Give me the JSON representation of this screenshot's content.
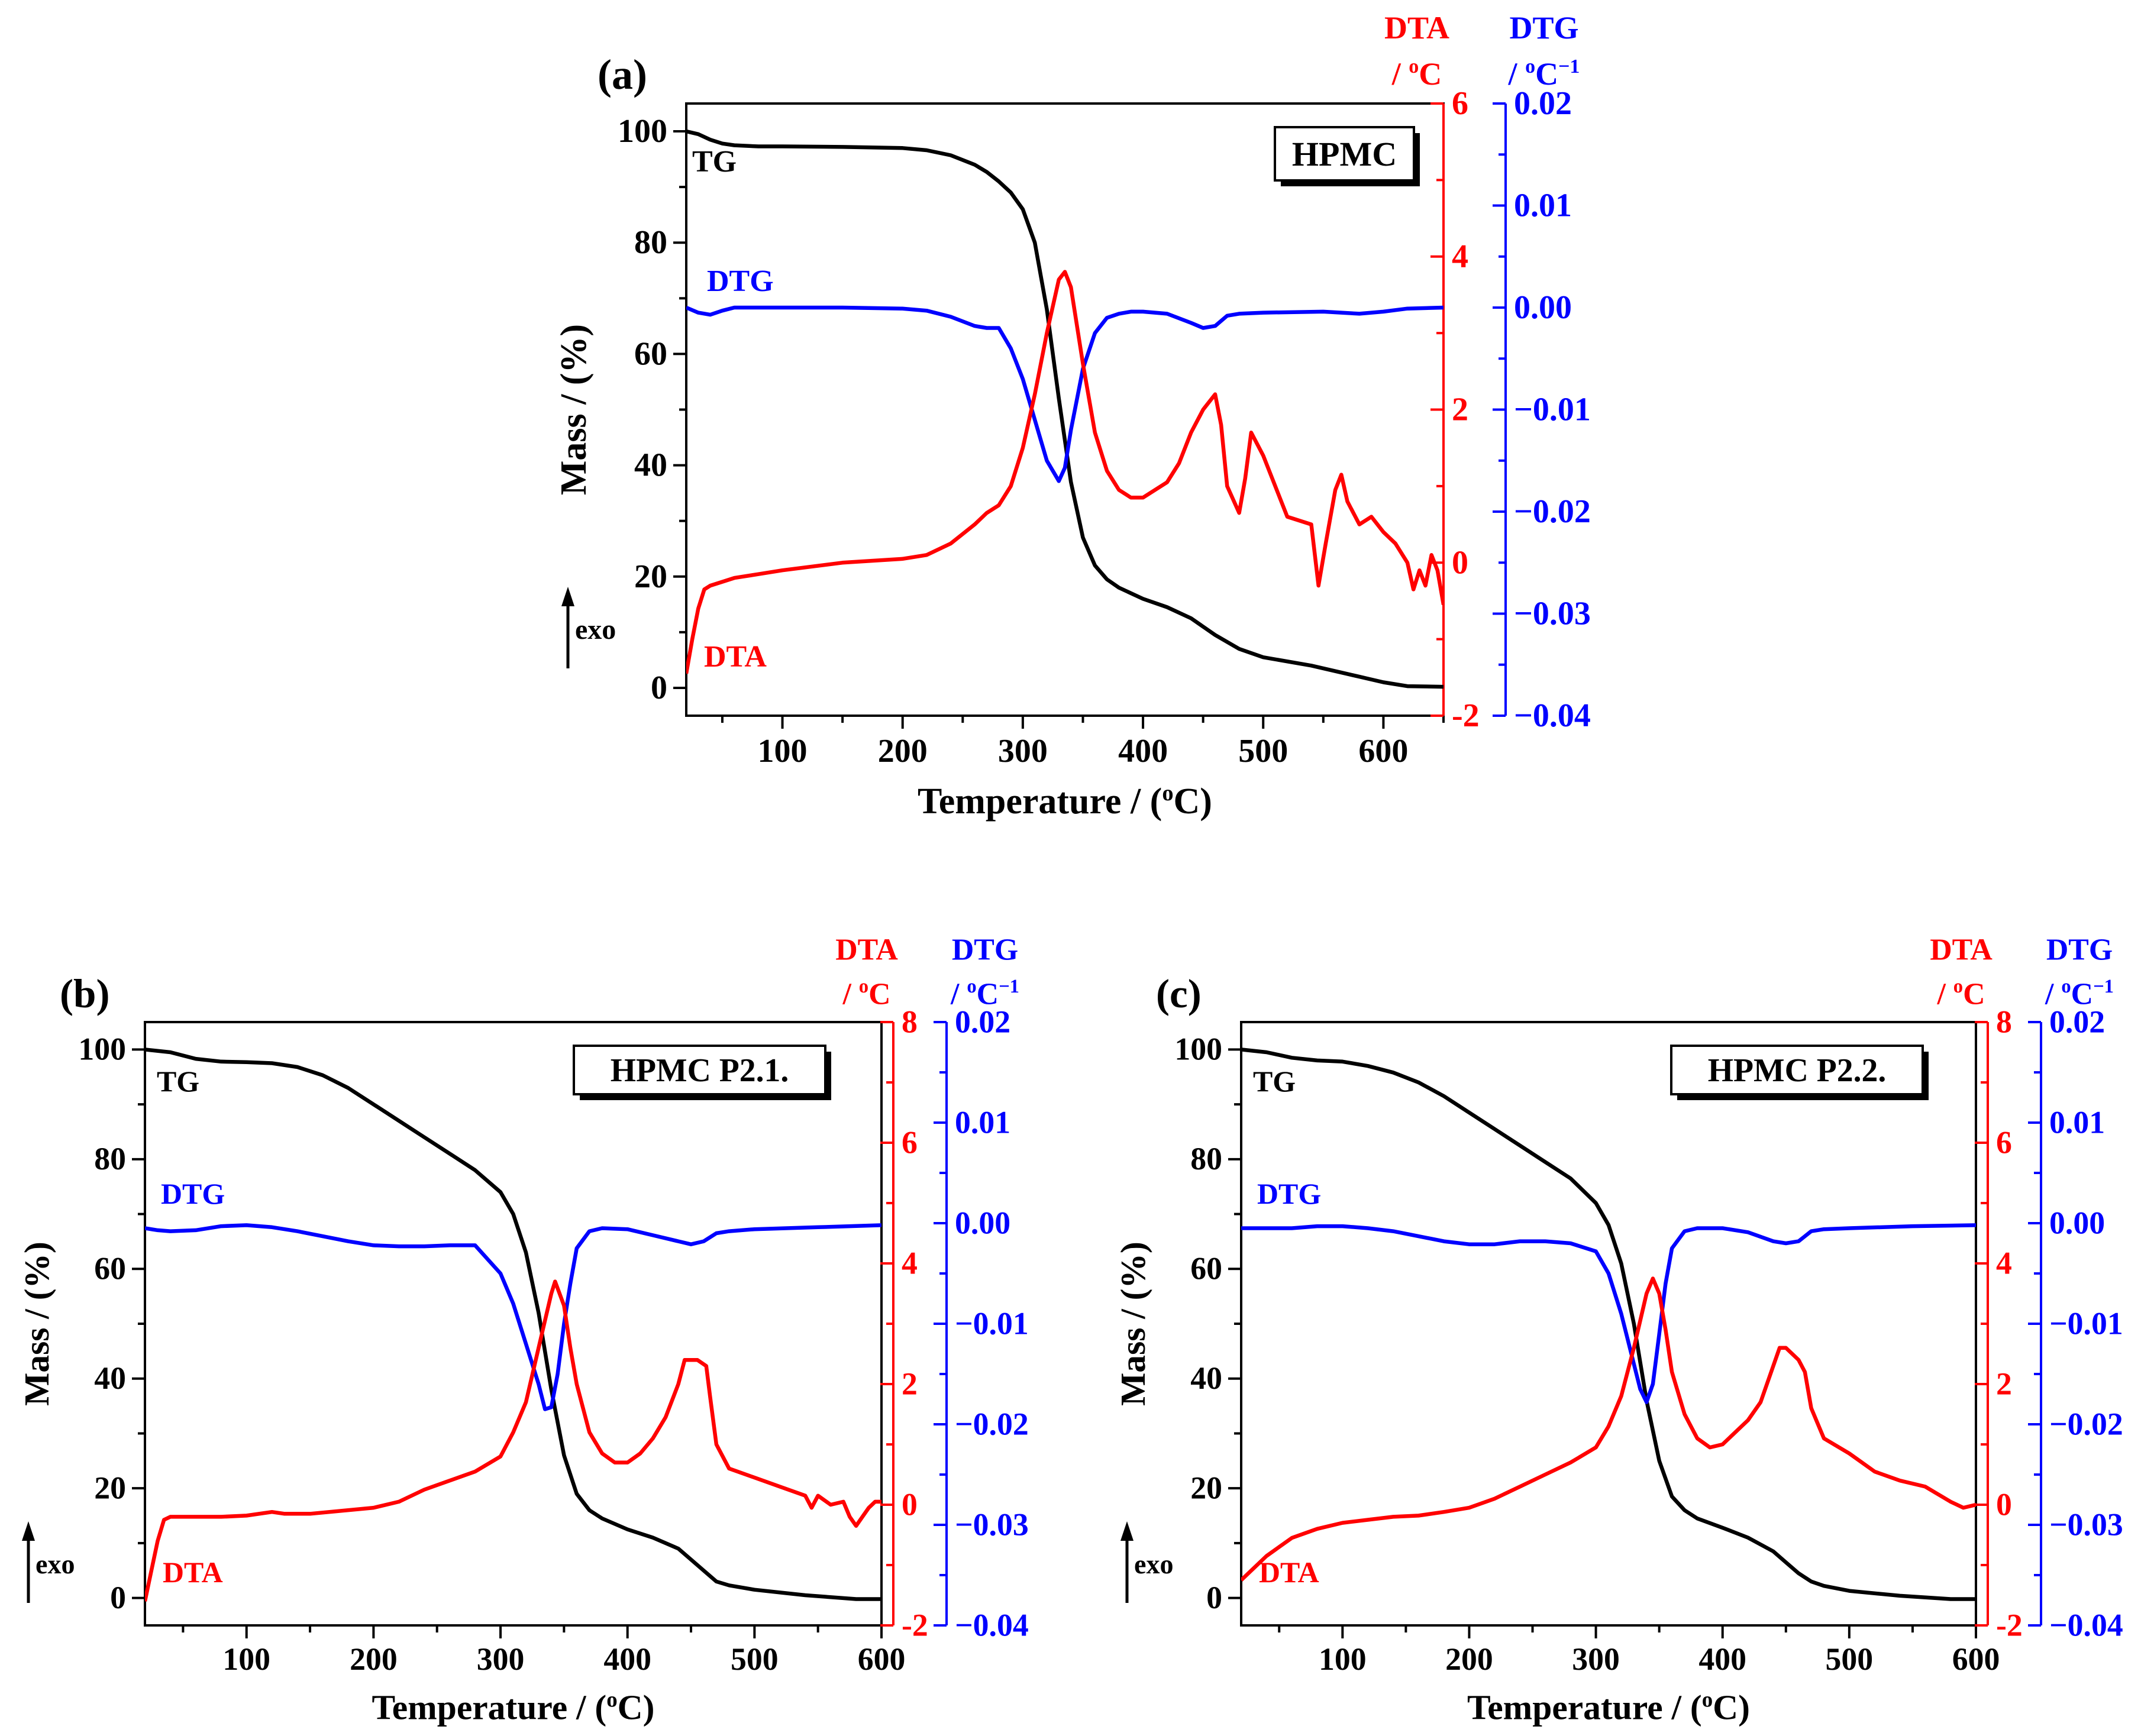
{
  "colors": {
    "tg": "#000000",
    "dtg": "#0000ff",
    "dta": "#ff0000",
    "axis": "#000000"
  },
  "chart_data": [
    {
      "panel": "(a)",
      "type": "line",
      "title": "HPMC",
      "xlabel": "Temperature / (",
      "xlabel_sup": "o",
      "xlabel_end": "C)",
      "xlim": [
        20,
        650
      ],
      "xticks": [
        100,
        200,
        300,
        400,
        500,
        600
      ],
      "left_axis": {
        "label": "Mass / (%)",
        "lim": [
          -5,
          105
        ],
        "ticks": [
          0,
          20,
          40,
          60,
          80,
          100
        ]
      },
      "dta_axis": {
        "label_line1": "DTA",
        "label_line2": "/ ",
        "label_sup": "o",
        "label_end": "C",
        "lim": [
          -2,
          6
        ],
        "ticks": [
          -2,
          0,
          2,
          4,
          6
        ]
      },
      "dtg_axis": {
        "label_line1": "DTG",
        "label_line2": "/ ",
        "label_sup": "o",
        "label_end": "C",
        "label_sup2": "−1",
        "lim": [
          -0.04,
          0.02
        ],
        "ticks": [
          "−0.04",
          "−0.03",
          "−0.02",
          "−0.01",
          "0.00",
          "0.01",
          "0.02"
        ],
        "tick_values": [
          -0.04,
          -0.03,
          -0.02,
          -0.01,
          0.0,
          0.01,
          0.02
        ]
      },
      "exo_label": "exo",
      "curve_labels": {
        "tg": "TG",
        "dtg": "DTG",
        "dta": "DTA"
      },
      "series": [
        {
          "name": "TG",
          "axis": "left",
          "x": [
            20,
            30,
            40,
            50,
            60,
            80,
            100,
            150,
            200,
            220,
            240,
            260,
            270,
            280,
            290,
            300,
            310,
            320,
            330,
            340,
            350,
            360,
            370,
            380,
            400,
            420,
            440,
            460,
            480,
            500,
            540,
            560,
            580,
            600,
            620,
            650
          ],
          "y": [
            100,
            99.5,
            98.5,
            97.8,
            97.5,
            97.3,
            97.3,
            97.2,
            97.0,
            96.6,
            95.7,
            94.0,
            92.7,
            91.0,
            89.0,
            86.0,
            80.0,
            68.0,
            52.0,
            37.0,
            27.0,
            22.0,
            19.5,
            18.0,
            16.0,
            14.5,
            12.5,
            9.5,
            7.0,
            5.5,
            4.0,
            3.0,
            2.0,
            1.0,
            0.3,
            0.2
          ]
        },
        {
          "name": "DTG",
          "axis": "dtg",
          "x": [
            20,
            30,
            40,
            50,
            60,
            80,
            100,
            150,
            200,
            220,
            240,
            260,
            270,
            280,
            290,
            300,
            310,
            320,
            330,
            335,
            340,
            350,
            360,
            370,
            380,
            390,
            400,
            420,
            440,
            450,
            460,
            470,
            480,
            500,
            550,
            580,
            600,
            620,
            650
          ],
          "y": [
            0.0,
            -0.0005,
            -0.0007,
            -0.0003,
            0.0,
            0.0,
            0.0,
            0.0,
            -0.0001,
            -0.0003,
            -0.0009,
            -0.0018,
            -0.002,
            -0.002,
            -0.004,
            -0.007,
            -0.011,
            -0.015,
            -0.017,
            -0.0157,
            -0.012,
            -0.006,
            -0.0025,
            -0.001,
            -0.0006,
            -0.0004,
            -0.0004,
            -0.0006,
            -0.0015,
            -0.002,
            -0.0018,
            -0.0008,
            -0.0006,
            -0.0005,
            -0.0004,
            -0.0006,
            -0.0004,
            -0.0001,
            0.0
          ]
        },
        {
          "name": "DTA",
          "axis": "dta",
          "x": [
            20,
            25,
            30,
            35,
            40,
            50,
            60,
            80,
            100,
            150,
            200,
            220,
            240,
            260,
            270,
            280,
            290,
            300,
            310,
            320,
            330,
            335,
            340,
            350,
            360,
            370,
            380,
            390,
            400,
            420,
            430,
            440,
            450,
            460,
            465,
            470,
            480,
            485,
            490,
            500,
            520,
            540,
            546,
            552,
            560,
            565,
            570,
            580,
            590,
            600,
            610,
            620,
            625,
            630,
            635,
            640,
            645,
            650
          ],
          "y": [
            -1.45,
            -1.0,
            -0.6,
            -0.35,
            -0.3,
            -0.25,
            -0.2,
            -0.15,
            -0.1,
            0.0,
            0.05,
            0.1,
            0.25,
            0.5,
            0.65,
            0.75,
            1.0,
            1.5,
            2.2,
            3.0,
            3.7,
            3.8,
            3.6,
            2.6,
            1.7,
            1.2,
            0.95,
            0.85,
            0.85,
            1.05,
            1.3,
            1.7,
            2.0,
            2.2,
            1.8,
            1.0,
            0.65,
            1.1,
            1.7,
            1.4,
            0.6,
            0.5,
            -0.3,
            0.25,
            0.95,
            1.15,
            0.8,
            0.5,
            0.6,
            0.4,
            0.25,
            0.0,
            -0.35,
            -0.1,
            -0.3,
            0.1,
            -0.1,
            -0.55
          ]
        }
      ]
    },
    {
      "panel": "(b)",
      "type": "line",
      "title": "HPMC P2.1.",
      "xlabel": "Temperature / (",
      "xlabel_sup": "o",
      "xlabel_end": "C)",
      "xlim": [
        20,
        600
      ],
      "xticks": [
        100,
        200,
        300,
        400,
        500,
        600
      ],
      "left_axis": {
        "label": "Mass / (%)",
        "lim": [
          -5,
          105
        ],
        "ticks": [
          0,
          20,
          40,
          60,
          80,
          100
        ]
      },
      "dta_axis": {
        "label_line1": "DTA",
        "label_line2": "/ ",
        "label_sup": "o",
        "label_end": "C",
        "lim": [
          -2,
          8
        ],
        "ticks": [
          -2,
          0,
          2,
          4,
          6,
          8
        ]
      },
      "dtg_axis": {
        "label_line1": "DTG",
        "label_line2": "/ ",
        "label_sup": "o",
        "label_end": "C",
        "label_sup2": "−1",
        "lim": [
          -0.04,
          0.02
        ],
        "ticks": [
          "−0.04",
          "−0.03",
          "−0.02",
          "−0.01",
          "0.00",
          "0.01",
          "0.02"
        ],
        "tick_values": [
          -0.04,
          -0.03,
          -0.02,
          -0.01,
          0.0,
          0.01,
          0.02
        ]
      },
      "exo_label": "exo",
      "curve_labels": {
        "tg": "TG",
        "dtg": "DTG",
        "dta": "DTA"
      },
      "series": [
        {
          "name": "TG",
          "axis": "left",
          "x": [
            20,
            40,
            60,
            80,
            100,
            120,
            140,
            160,
            180,
            200,
            220,
            240,
            260,
            280,
            300,
            310,
            320,
            330,
            340,
            350,
            360,
            370,
            380,
            400,
            420,
            440,
            450,
            460,
            470,
            480,
            500,
            540,
            580,
            600
          ],
          "y": [
            100,
            99.5,
            98.3,
            97.8,
            97.7,
            97.5,
            96.8,
            95.3,
            93.0,
            90.0,
            87.0,
            84.0,
            81.0,
            78.0,
            74.0,
            70.0,
            63.0,
            52.0,
            38.0,
            26.0,
            19.0,
            16.0,
            14.5,
            12.5,
            11.0,
            9.0,
            7.0,
            5.0,
            3.0,
            2.3,
            1.5,
            0.5,
            -0.2,
            -0.2
          ]
        },
        {
          "name": "DTG",
          "axis": "dtg",
          "x": [
            20,
            30,
            40,
            60,
            80,
            100,
            120,
            140,
            160,
            180,
            200,
            220,
            240,
            260,
            280,
            300,
            310,
            320,
            330,
            335,
            340,
            345,
            350,
            355,
            360,
            370,
            380,
            400,
            420,
            440,
            450,
            460,
            470,
            480,
            500,
            550,
            600
          ],
          "y": [
            -0.0005,
            -0.0007,
            -0.0008,
            -0.0007,
            -0.0003,
            -0.0002,
            -0.0004,
            -0.0008,
            -0.0013,
            -0.0018,
            -0.0022,
            -0.0023,
            -0.0023,
            -0.0022,
            -0.0022,
            -0.005,
            -0.008,
            -0.012,
            -0.016,
            -0.0185,
            -0.0183,
            -0.015,
            -0.01,
            -0.006,
            -0.0025,
            -0.0008,
            -0.0005,
            -0.0006,
            -0.0012,
            -0.0018,
            -0.0021,
            -0.0018,
            -0.001,
            -0.0008,
            -0.0006,
            -0.0004,
            -0.0002
          ]
        },
        {
          "name": "DTA",
          "axis": "dta",
          "x": [
            20,
            25,
            30,
            35,
            40,
            50,
            60,
            80,
            100,
            120,
            130,
            150,
            200,
            220,
            240,
            260,
            280,
            300,
            310,
            320,
            330,
            340,
            343,
            350,
            355,
            360,
            370,
            380,
            390,
            400,
            410,
            420,
            430,
            440,
            445,
            455,
            462,
            465,
            470,
            480,
            500,
            520,
            540,
            545,
            550,
            560,
            570,
            575,
            580,
            585,
            590,
            595,
            600
          ],
          "y": [
            -1.6,
            -1.1,
            -0.6,
            -0.25,
            -0.2,
            -0.2,
            -0.2,
            -0.2,
            -0.18,
            -0.12,
            -0.15,
            -0.15,
            -0.05,
            0.05,
            0.25,
            0.4,
            0.55,
            0.8,
            1.2,
            1.7,
            2.6,
            3.5,
            3.7,
            3.3,
            2.6,
            2.0,
            1.2,
            0.85,
            0.7,
            0.7,
            0.85,
            1.1,
            1.45,
            2.0,
            2.4,
            2.4,
            2.3,
            1.8,
            1.0,
            0.6,
            0.45,
            0.3,
            0.15,
            -0.05,
            0.15,
            0.0,
            0.05,
            -0.2,
            -0.35,
            -0.2,
            -0.05,
            0.05,
            0.05
          ]
        }
      ]
    },
    {
      "panel": "(c)",
      "type": "line",
      "title": "HPMC P2.2.",
      "xlabel": "Temperature / (",
      "xlabel_sup": "o",
      "xlabel_end": "C)",
      "xlim": [
        20,
        600
      ],
      "xticks": [
        100,
        200,
        300,
        400,
        500,
        600
      ],
      "left_axis": {
        "label": "Mass / (%)",
        "lim": [
          -5,
          105
        ],
        "ticks": [
          0,
          20,
          40,
          60,
          80,
          100
        ]
      },
      "dta_axis": {
        "label_line1": "DTA",
        "label_line2": "/ ",
        "label_sup": "o",
        "label_end": "C",
        "lim": [
          -2,
          8
        ],
        "ticks": [
          -2,
          0,
          2,
          4,
          6,
          8
        ]
      },
      "dtg_axis": {
        "label_line1": "DTG",
        "label_line2": "/ ",
        "label_sup": "o",
        "label_end": "C",
        "label_sup2": "−1",
        "lim": [
          -0.04,
          0.02
        ],
        "ticks": [
          "−0.04",
          "−0.03",
          "−0.02",
          "−0.01",
          "0.00",
          "0.01",
          "0.02"
        ],
        "tick_values": [
          -0.04,
          -0.03,
          -0.02,
          -0.01,
          0.0,
          0.01,
          0.02
        ]
      },
      "exo_label": "exo",
      "curve_labels": {
        "tg": "TG",
        "dtg": "DTG",
        "dta": "DTA"
      },
      "series": [
        {
          "name": "TG",
          "axis": "left",
          "x": [
            20,
            40,
            60,
            80,
            100,
            120,
            140,
            160,
            180,
            200,
            220,
            240,
            260,
            280,
            300,
            310,
            320,
            330,
            340,
            350,
            360,
            370,
            380,
            400,
            420,
            440,
            450,
            460,
            470,
            480,
            500,
            540,
            580,
            600
          ],
          "y": [
            100,
            99.5,
            98.5,
            98.0,
            97.8,
            97.0,
            95.8,
            94.0,
            91.5,
            88.5,
            85.5,
            82.5,
            79.5,
            76.5,
            72.0,
            68.0,
            61.0,
            50.0,
            36.0,
            25.0,
            18.5,
            16.0,
            14.5,
            12.8,
            11.0,
            8.5,
            6.5,
            4.5,
            3.0,
            2.2,
            1.3,
            0.4,
            -0.2,
            -0.2
          ]
        },
        {
          "name": "DTG",
          "axis": "dtg",
          "x": [
            20,
            40,
            60,
            80,
            100,
            120,
            140,
            160,
            180,
            200,
            220,
            240,
            260,
            280,
            300,
            310,
            320,
            330,
            335,
            340,
            345,
            350,
            355,
            360,
            370,
            380,
            400,
            420,
            440,
            450,
            460,
            470,
            480,
            500,
            550,
            600
          ],
          "y": [
            -0.0005,
            -0.0005,
            -0.0005,
            -0.0003,
            -0.0003,
            -0.0005,
            -0.0008,
            -0.0013,
            -0.0018,
            -0.0021,
            -0.0021,
            -0.0018,
            -0.0018,
            -0.002,
            -0.0028,
            -0.005,
            -0.009,
            -0.014,
            -0.0165,
            -0.0178,
            -0.016,
            -0.011,
            -0.006,
            -0.0025,
            -0.0008,
            -0.0005,
            -0.0005,
            -0.0009,
            -0.0018,
            -0.002,
            -0.0018,
            -0.0008,
            -0.0006,
            -0.0005,
            -0.0003,
            -0.0002
          ]
        },
        {
          "name": "DTA",
          "axis": "dta",
          "x": [
            20,
            30,
            40,
            50,
            60,
            80,
            100,
            120,
            140,
            160,
            180,
            200,
            220,
            240,
            260,
            280,
            300,
            310,
            320,
            330,
            340,
            345,
            350,
            355,
            360,
            370,
            380,
            390,
            400,
            410,
            420,
            430,
            440,
            445,
            450,
            460,
            465,
            470,
            480,
            500,
            520,
            540,
            560,
            580,
            590,
            600
          ],
          "y": [
            -1.25,
            -1.05,
            -0.85,
            -0.7,
            -0.55,
            -0.4,
            -0.3,
            -0.25,
            -0.2,
            -0.18,
            -0.12,
            -0.05,
            0.1,
            0.3,
            0.5,
            0.7,
            0.95,
            1.3,
            1.8,
            2.6,
            3.5,
            3.75,
            3.5,
            2.9,
            2.2,
            1.5,
            1.1,
            0.95,
            1.0,
            1.2,
            1.4,
            1.7,
            2.3,
            2.6,
            2.6,
            2.4,
            2.2,
            1.6,
            1.1,
            0.85,
            0.55,
            0.4,
            0.3,
            0.05,
            -0.05,
            0.0
          ]
        }
      ]
    }
  ]
}
